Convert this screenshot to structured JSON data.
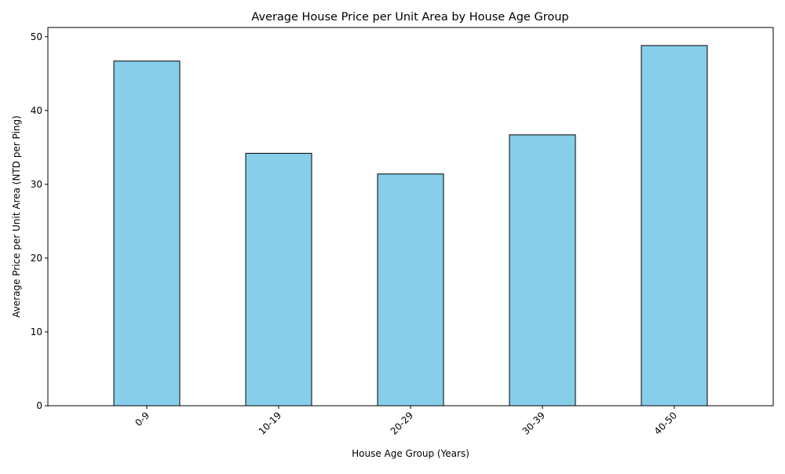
{
  "chart_data": {
    "type": "bar",
    "title": "Average House Price per Unit Area by House Age Group",
    "xlabel": "House Age Group (Years)",
    "ylabel": "Average Price per Unit Area (NTD per Ping)",
    "categories": [
      "0-9",
      "10-19",
      "20-29",
      "30-39",
      "40-50"
    ],
    "values": [
      46.7,
      34.2,
      31.4,
      36.7,
      48.8
    ],
    "ylim": [
      0,
      51.25
    ],
    "yticks": [
      0,
      10,
      20,
      30,
      40,
      50
    ],
    "bar_color": "#87ceeb",
    "bar_edge_color": "#000000",
    "grid": false,
    "legend": "none",
    "xtick_rotation": 45
  }
}
